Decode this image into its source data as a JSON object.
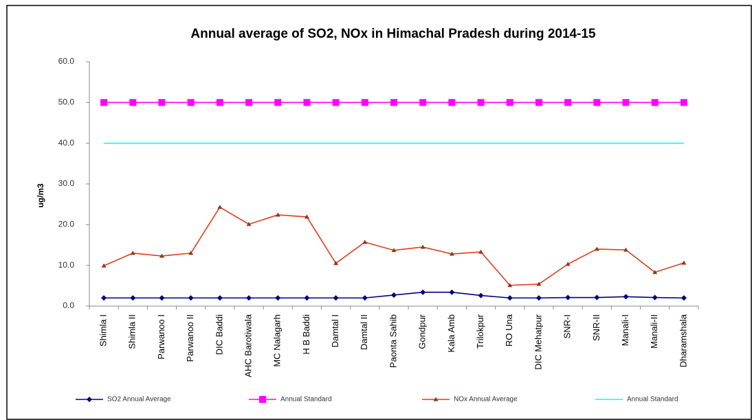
{
  "chart_data": {
    "type": "line",
    "title": "Annual average of SO2, NOx in Himachal Pradesh during 2014-15",
    "y_label": "ug/m3",
    "categories": [
      "Shimla I",
      "Shimla II",
      "Parwanoo I",
      "Parwanoo II",
      "DIC Baddi",
      "AHC Barotiwala",
      "MC Nalagarh",
      "H B Baddi",
      "Damtal I",
      "Damtal II",
      "Paonta Sahib",
      "Gondpur",
      "Kala Amb",
      "Trilokpur",
      "RO Una",
      "DIC Mehatpur",
      "SNR-I",
      "SNR-II",
      "Manali-I",
      "Manali-II",
      "Dharamshala"
    ],
    "series": [
      {
        "name": "SO2 Annual Average",
        "color": "#000080",
        "marker": "diamond",
        "values": [
          2.0,
          2.0,
          2.0,
          2.0,
          2.0,
          2.0,
          2.0,
          2.0,
          2.0,
          2.0,
          2.7,
          3.4,
          3.4,
          2.6,
          2.0,
          2.0,
          2.1,
          2.1,
          2.3,
          2.1,
          2.0
        ]
      },
      {
        "name": "Annual Standard",
        "color": "#ff00ff",
        "marker": "square",
        "values": [
          50,
          50,
          50,
          50,
          50,
          50,
          50,
          50,
          50,
          50,
          50,
          50,
          50,
          50,
          50,
          50,
          50,
          50,
          50,
          50,
          50
        ]
      },
      {
        "name": "NOx Annual Average",
        "color": "#e03c1c",
        "marker": "triangle",
        "values": [
          9.9,
          13.0,
          12.3,
          13.0,
          24.3,
          20.1,
          22.4,
          21.9,
          10.5,
          15.7,
          13.7,
          14.5,
          12.8,
          13.3,
          5.1,
          5.4,
          10.3,
          14.0,
          13.8,
          8.3,
          10.6
        ]
      },
      {
        "name": "Annual Standard",
        "color": "#00ffff",
        "marker": "none",
        "values": [
          40,
          40,
          40,
          40,
          40,
          40,
          40,
          40,
          40,
          40,
          40,
          40,
          40,
          40,
          40,
          40,
          40,
          40,
          40,
          40,
          40
        ]
      }
    ],
    "ylim": [
      0,
      60
    ],
    "yticks": [
      {
        "value": 0,
        "label": "0.0"
      },
      {
        "value": 10,
        "label": "10.0"
      },
      {
        "value": 20,
        "label": "20.0"
      },
      {
        "value": 30,
        "label": "30.0"
      },
      {
        "value": 40,
        "label": "40.0"
      },
      {
        "value": 50,
        "label": "50.0"
      },
      {
        "value": 60,
        "label": "60.0"
      }
    ],
    "grid": false,
    "legend": "bottom"
  }
}
